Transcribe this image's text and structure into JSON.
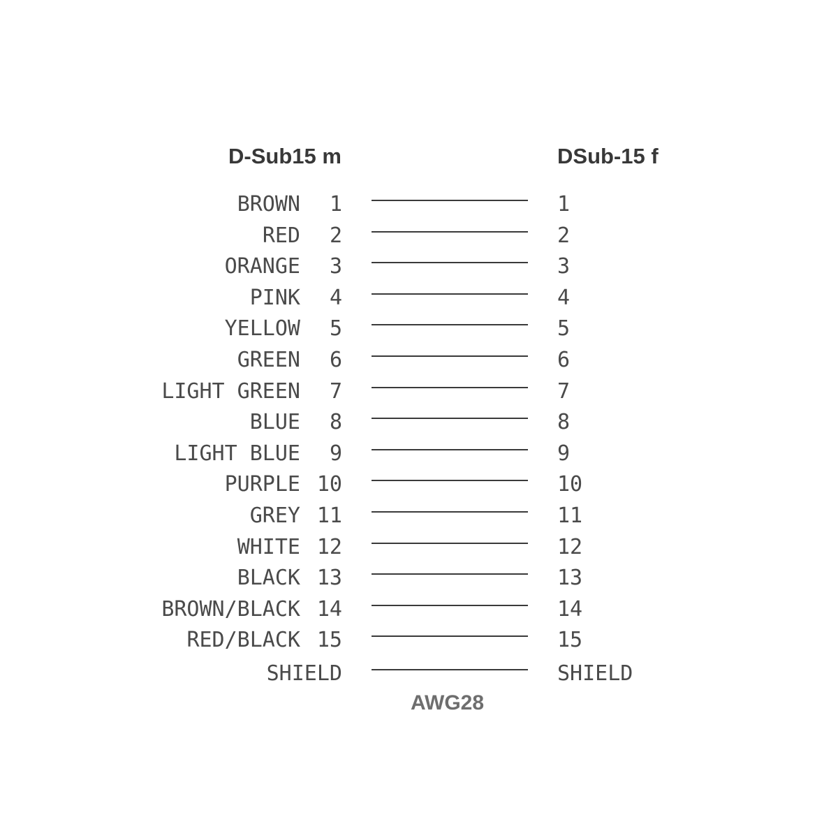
{
  "diagram": {
    "title_left": "D-Sub15 m",
    "title_right": "DSub-15 f",
    "footer": "AWG28",
    "colors": {
      "text": "#4a4a4a",
      "line": "#3a3a3a",
      "header": "#383838",
      "footer_text": "#6e6e6e",
      "background": "#ffffff"
    },
    "rows": [
      {
        "color": "BROWN",
        "left_pin": "1",
        "right_pin": "1"
      },
      {
        "color": "RED",
        "left_pin": "2",
        "right_pin": "2"
      },
      {
        "color": "ORANGE",
        "left_pin": "3",
        "right_pin": "3"
      },
      {
        "color": "PINK",
        "left_pin": "4",
        "right_pin": "4"
      },
      {
        "color": "YELLOW",
        "left_pin": "5",
        "right_pin": "5"
      },
      {
        "color": "GREEN",
        "left_pin": "6",
        "right_pin": "6"
      },
      {
        "color": "LIGHT GREEN",
        "left_pin": "7",
        "right_pin": "7"
      },
      {
        "color": "BLUE",
        "left_pin": "8",
        "right_pin": "8"
      },
      {
        "color": "LIGHT BLUE",
        "left_pin": "9",
        "right_pin": "9"
      },
      {
        "color": "PURPLE",
        "left_pin": "10",
        "right_pin": "10"
      },
      {
        "color": "GREY",
        "left_pin": "11",
        "right_pin": "11"
      },
      {
        "color": "WHITE",
        "left_pin": "12",
        "right_pin": "12"
      },
      {
        "color": "BLACK",
        "left_pin": "13",
        "right_pin": "13"
      },
      {
        "color": "BROWN/BLACK",
        "left_pin": "14",
        "right_pin": "14"
      },
      {
        "color": "RED/BLACK",
        "left_pin": "15",
        "right_pin": "15"
      }
    ],
    "shield": {
      "left_label": "SHIELD",
      "right_label": "SHIELD"
    }
  }
}
